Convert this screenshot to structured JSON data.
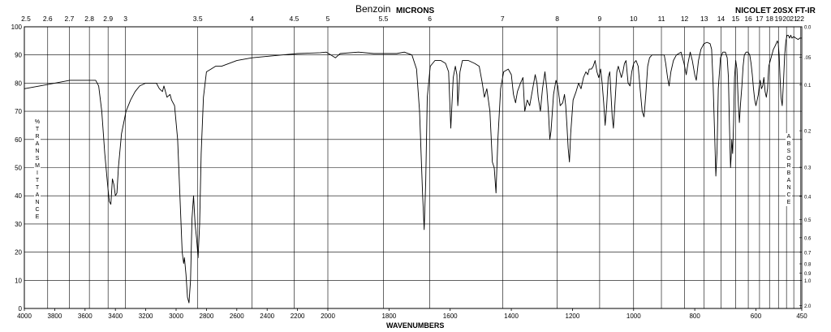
{
  "header": {
    "title": "Benzoin",
    "micron_axis_label": "MICRONS",
    "instrument": "NICOLET 20SX FT-IR"
  },
  "chart_data": {
    "type": "line",
    "title": "Benzoin",
    "xlabel": "WAVENUMBERS",
    "ylabel_left": "%TRANSMITTANCE",
    "ylabel_right": "ABSORBANCE",
    "top_axis_label": "MICRONS",
    "x_scale": "piecewise-linear (2x scale below 2000 cm-1)",
    "xlim": [
      4000,
      450
    ],
    "ylim": [
      0,
      100
    ],
    "x_ticks": [
      4000,
      3800,
      3600,
      3400,
      3200,
      3000,
      2800,
      2600,
      2400,
      2200,
      2000,
      1800,
      1600,
      1400,
      1200,
      1000,
      800,
      600,
      450
    ],
    "x_tick_labels": [
      "4000",
      "3800",
      "3600",
      "3400",
      "3200",
      "3000",
      "2800",
      "2600",
      "2400",
      "2200",
      "2000",
      "1800",
      "1600",
      "1400",
      "1200",
      "1000",
      "800",
      "600",
      "450"
    ],
    "y_ticks": [
      0,
      10,
      20,
      30,
      40,
      50,
      60,
      70,
      80,
      90,
      100
    ],
    "y_tick_labels": [
      "0",
      "10",
      "20",
      "30",
      "40",
      "50",
      "60",
      "70",
      "80",
      "90",
      "100"
    ],
    "micron_ticks": [
      2.5,
      2.6,
      2.7,
      2.8,
      2.9,
      3,
      3.5,
      4,
      4.5,
      5,
      5.5,
      6,
      7,
      8,
      9,
      10,
      11,
      12,
      13,
      14,
      15,
      16,
      17,
      18,
      19,
      20,
      21,
      22
    ],
    "micron_tick_labels": [
      "2.5",
      "2.6",
      "2.7",
      "2.8",
      "2.9",
      "3",
      "3.5",
      "4",
      "4.5",
      "5",
      "5.5",
      "6",
      "7",
      "8",
      "9",
      "10",
      "11",
      "12",
      "13",
      "14",
      "15",
      "16",
      "17",
      "18",
      "19",
      "20",
      "21",
      "22"
    ],
    "absorbance_ticks": [
      0.0,
      0.05,
      0.1,
      0.2,
      0.3,
      0.4,
      0.5,
      0.6,
      0.7,
      0.8,
      0.9,
      1.0,
      2.0
    ],
    "absorbance_tick_labels": [
      "0.0",
      ".05",
      "0.1",
      "0.2",
      "0.3",
      "0.4",
      "0.5",
      "0.6",
      "0.7",
      "0.8",
      "0.9",
      "1.0",
      "2.0"
    ],
    "grid": true,
    "series": [
      {
        "points": [
          [
            4000,
            78
          ],
          [
            3900,
            79
          ],
          [
            3800,
            80
          ],
          [
            3700,
            81
          ],
          [
            3600,
            81
          ],
          [
            3530,
            81
          ],
          [
            3510,
            79
          ],
          [
            3490,
            70
          ],
          [
            3470,
            55
          ],
          [
            3450,
            43
          ],
          [
            3440,
            38
          ],
          [
            3430,
            37
          ],
          [
            3420,
            46
          ],
          [
            3410,
            44
          ],
          [
            3400,
            40
          ],
          [
            3390,
            41
          ],
          [
            3380,
            50
          ],
          [
            3360,
            62
          ],
          [
            3330,
            70
          ],
          [
            3300,
            74
          ],
          [
            3270,
            77
          ],
          [
            3240,
            79
          ],
          [
            3200,
            80
          ],
          [
            3160,
            80
          ],
          [
            3130,
            80
          ],
          [
            3110,
            78
          ],
          [
            3090,
            77
          ],
          [
            3080,
            79
          ],
          [
            3060,
            75
          ],
          [
            3040,
            76
          ],
          [
            3030,
            74
          ],
          [
            3010,
            72
          ],
          [
            2990,
            60
          ],
          [
            2975,
            40
          ],
          [
            2960,
            20
          ],
          [
            2950,
            16
          ],
          [
            2945,
            18
          ],
          [
            2935,
            12
          ],
          [
            2925,
            4
          ],
          [
            2915,
            2
          ],
          [
            2905,
            10
          ],
          [
            2895,
            32
          ],
          [
            2885,
            40
          ],
          [
            2875,
            30
          ],
          [
            2865,
            25
          ],
          [
            2855,
            18
          ],
          [
            2845,
            30
          ],
          [
            2835,
            55
          ],
          [
            2820,
            75
          ],
          [
            2800,
            84
          ],
          [
            2770,
            85
          ],
          [
            2740,
            86
          ],
          [
            2700,
            86
          ],
          [
            2650,
            87
          ],
          [
            2600,
            88
          ],
          [
            2500,
            89
          ],
          [
            2400,
            89.5
          ],
          [
            2300,
            90
          ],
          [
            2200,
            90.5
          ],
          [
            2100,
            90.7
          ],
          [
            2050,
            90.8
          ],
          [
            2010,
            91
          ],
          [
            1990,
            90
          ],
          [
            1975,
            89
          ],
          [
            1960,
            90.5
          ],
          [
            1900,
            91
          ],
          [
            1850,
            90.5
          ],
          [
            1800,
            90.5
          ],
          [
            1775,
            90.5
          ],
          [
            1750,
            91
          ],
          [
            1725,
            90
          ],
          [
            1710,
            85
          ],
          [
            1700,
            70
          ],
          [
            1690,
            40
          ],
          [
            1685,
            28
          ],
          [
            1680,
            45
          ],
          [
            1675,
            75
          ],
          [
            1665,
            86
          ],
          [
            1650,
            88
          ],
          [
            1630,
            88
          ],
          [
            1615,
            87
          ],
          [
            1605,
            84
          ],
          [
            1598,
            64
          ],
          [
            1590,
            82
          ],
          [
            1583,
            86
          ],
          [
            1578,
            83
          ],
          [
            1575,
            72
          ],
          [
            1568,
            84
          ],
          [
            1560,
            88
          ],
          [
            1540,
            88
          ],
          [
            1520,
            87
          ],
          [
            1505,
            86
          ],
          [
            1495,
            80
          ],
          [
            1488,
            75
          ],
          [
            1480,
            78
          ],
          [
            1470,
            70
          ],
          [
            1462,
            52
          ],
          [
            1456,
            50
          ],
          [
            1450,
            41
          ],
          [
            1444,
            60
          ],
          [
            1435,
            78
          ],
          [
            1425,
            84
          ],
          [
            1410,
            85
          ],
          [
            1400,
            83
          ],
          [
            1393,
            76
          ],
          [
            1386,
            73
          ],
          [
            1380,
            77
          ],
          [
            1370,
            80
          ],
          [
            1362,
            82
          ],
          [
            1356,
            70
          ],
          [
            1348,
            74
          ],
          [
            1340,
            72
          ],
          [
            1330,
            78
          ],
          [
            1322,
            83
          ],
          [
            1316,
            80
          ],
          [
            1312,
            75
          ],
          [
            1305,
            70
          ],
          [
            1298,
            78
          ],
          [
            1290,
            84
          ],
          [
            1284,
            78
          ],
          [
            1278,
            69
          ],
          [
            1274,
            60
          ],
          [
            1270,
            63
          ],
          [
            1262,
            76
          ],
          [
            1254,
            81
          ],
          [
            1248,
            79
          ],
          [
            1240,
            72
          ],
          [
            1232,
            73
          ],
          [
            1226,
            76
          ],
          [
            1222,
            72
          ],
          [
            1218,
            65
          ],
          [
            1214,
            57
          ],
          [
            1210,
            52
          ],
          [
            1206,
            62
          ],
          [
            1198,
            74
          ],
          [
            1188,
            77
          ],
          [
            1180,
            80
          ],
          [
            1172,
            78
          ],
          [
            1164,
            82
          ],
          [
            1156,
            84
          ],
          [
            1150,
            83
          ],
          [
            1145,
            85
          ],
          [
            1138,
            85
          ],
          [
            1132,
            86
          ],
          [
            1126,
            88
          ],
          [
            1120,
            84
          ],
          [
            1114,
            82
          ],
          [
            1108,
            85
          ],
          [
            1103,
            80
          ],
          [
            1098,
            73
          ],
          [
            1093,
            65
          ],
          [
            1088,
            72
          ],
          [
            1083,
            82
          ],
          [
            1078,
            84
          ],
          [
            1074,
            76
          ],
          [
            1070,
            68
          ],
          [
            1066,
            64
          ],
          [
            1061,
            73
          ],
          [
            1055,
            84
          ],
          [
            1050,
            86
          ],
          [
            1045,
            84
          ],
          [
            1040,
            82
          ],
          [
            1035,
            84
          ],
          [
            1030,
            87
          ],
          [
            1025,
            88
          ],
          [
            1018,
            80
          ],
          [
            1012,
            79
          ],
          [
            1006,
            84
          ],
          [
            1000,
            87
          ],
          [
            992,
            88
          ],
          [
            985,
            86
          ],
          [
            978,
            77
          ],
          [
            972,
            70
          ],
          [
            966,
            68
          ],
          [
            960,
            76
          ],
          [
            954,
            86
          ],
          [
            948,
            89
          ],
          [
            940,
            90
          ],
          [
            920,
            90
          ],
          [
            900,
            90
          ],
          [
            895,
            87
          ],
          [
            889,
            82
          ],
          [
            884,
            79
          ],
          [
            878,
            84
          ],
          [
            870,
            88
          ],
          [
            860,
            90
          ],
          [
            845,
            91
          ],
          [
            835,
            87
          ],
          [
            828,
            83
          ],
          [
            822,
            87
          ],
          [
            815,
            91
          ],
          [
            808,
            88
          ],
          [
            800,
            83
          ],
          [
            795,
            81
          ],
          [
            788,
            88
          ],
          [
            780,
            92
          ],
          [
            770,
            94
          ],
          [
            760,
            94.5
          ],
          [
            750,
            94
          ],
          [
            745,
            92
          ],
          [
            740,
            80
          ],
          [
            735,
            62
          ],
          [
            731,
            47
          ],
          [
            727,
            56
          ],
          [
            723,
            78
          ],
          [
            716,
            89
          ],
          [
            708,
            91
          ],
          [
            700,
            91
          ],
          [
            694,
            89
          ],
          [
            690,
            82
          ],
          [
            687,
            67
          ],
          [
            685,
            58
          ],
          [
            683,
            50
          ],
          [
            681,
            54
          ],
          [
            679,
            60
          ],
          [
            676,
            55
          ],
          [
            673,
            66
          ],
          [
            670,
            82
          ],
          [
            666,
            88
          ],
          [
            662,
            85
          ],
          [
            658,
            74
          ],
          [
            654,
            66
          ],
          [
            650,
            73
          ],
          [
            646,
            79
          ],
          [
            642,
            86
          ],
          [
            638,
            90
          ],
          [
            632,
            91
          ],
          [
            626,
            91
          ],
          [
            620,
            90
          ],
          [
            616,
            87
          ],
          [
            612,
            83
          ],
          [
            608,
            78
          ],
          [
            604,
            74
          ],
          [
            600,
            72
          ],
          [
            596,
            74
          ],
          [
            592,
            76
          ],
          [
            589,
            79
          ],
          [
            586,
            81
          ],
          [
            582,
            78
          ],
          [
            578,
            79
          ],
          [
            574,
            82
          ],
          [
            570,
            77
          ],
          [
            566,
            75
          ],
          [
            562,
            78
          ],
          [
            558,
            86
          ],
          [
            553,
            88
          ],
          [
            548,
            90
          ],
          [
            543,
            92
          ],
          [
            538,
            93
          ],
          [
            534,
            94
          ],
          [
            530,
            95
          ],
          [
            527,
            94
          ],
          [
            524,
            90
          ],
          [
            521,
            82
          ],
          [
            518,
            75
          ],
          [
            514,
            72
          ],
          [
            510,
            80
          ],
          [
            506,
            90
          ],
          [
            502,
            95
          ],
          [
            498,
            97
          ],
          [
            494,
            97
          ],
          [
            490,
            96
          ],
          [
            486,
            97
          ],
          [
            482,
            96
          ],
          [
            476,
            96.5
          ],
          [
            470,
            96
          ],
          [
            462,
            95.5
          ],
          [
            456,
            96
          ],
          [
            450,
            96
          ]
        ]
      }
    ]
  }
}
